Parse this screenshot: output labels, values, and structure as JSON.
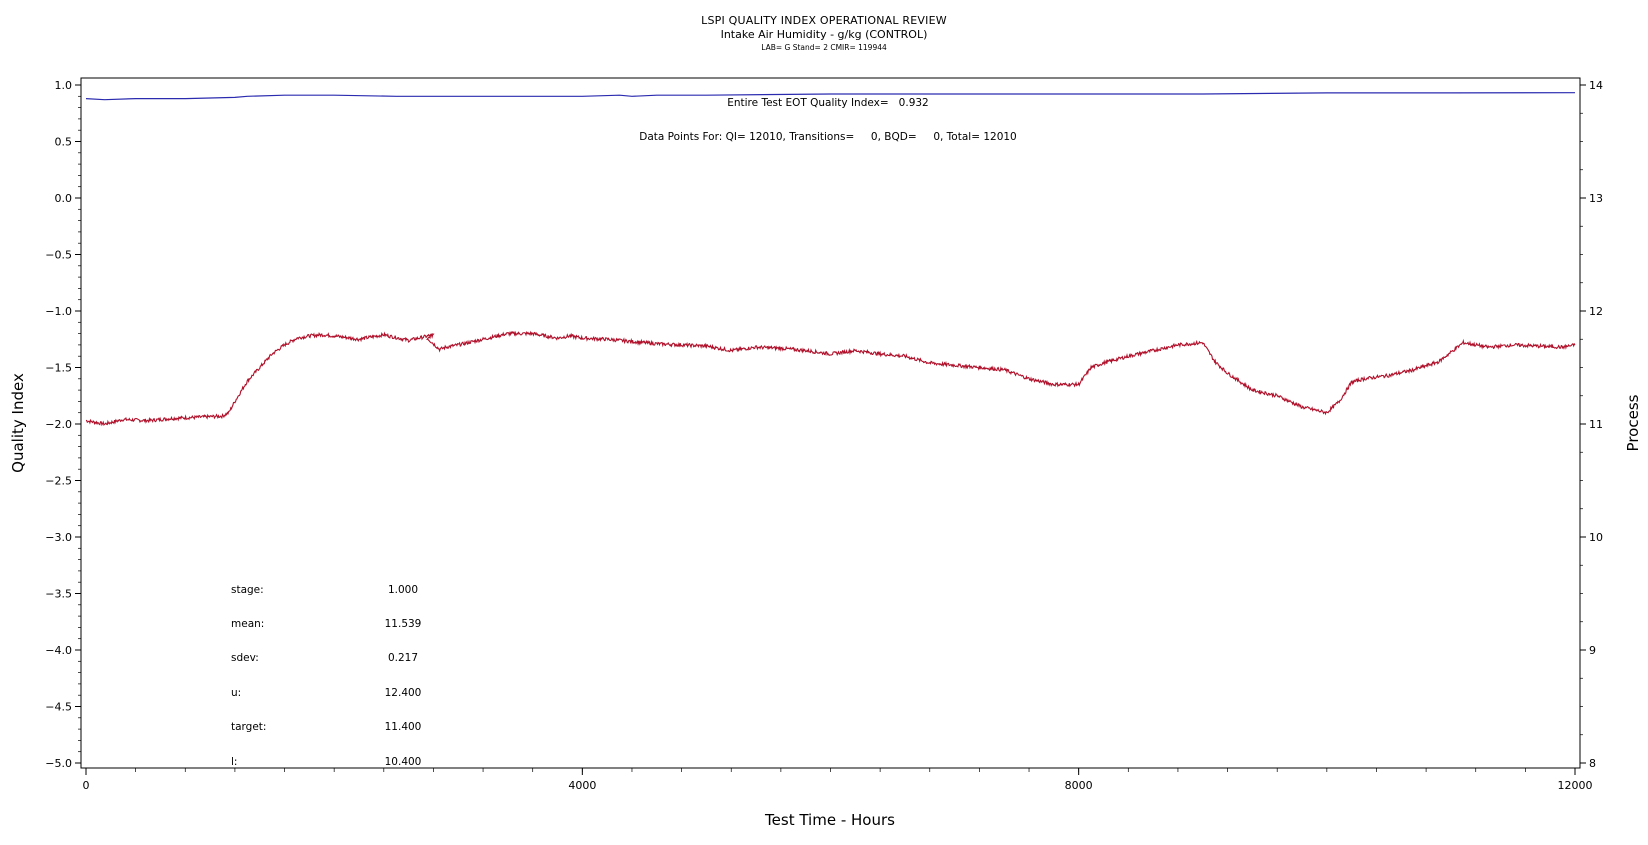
{
  "header": {
    "title": "LSPI QUALITY INDEX OPERATIONAL REVIEW",
    "subtitle": "Intake Air Humidity - g/kg (CONTROL)",
    "meta": "LAB= G Stand= 2 CMIR= 119944"
  },
  "annotations": {
    "qi_line": "Entire Test EOT Quality Index=   0.932",
    "points_line": "Data Points For: QI= 12010, Transitions=     0, BQD=     0, Total= 12010"
  },
  "stats": [
    {
      "label": "stage:",
      "value": "1.000"
    },
    {
      "label": "mean:",
      "value": "11.539"
    },
    {
      "label": "sdev:",
      "value": "0.217"
    },
    {
      "label": "u:",
      "value": "12.400"
    },
    {
      "label": "target:",
      "value": "11.400"
    },
    {
      "label": "l:",
      "value": "10.400"
    }
  ],
  "colors": {
    "quality_index": "#2b2bb0",
    "process": "#b0102a"
  },
  "chart_data": {
    "type": "line",
    "xlabel": "Test Time - Hours",
    "ylabel": "Quality Index",
    "y2label": "Process",
    "xlim": [
      0,
      12000
    ],
    "ylim": [
      -5.0,
      1.0
    ],
    "y2lim": [
      8,
      14
    ],
    "x_ticks": [
      "0",
      "4000",
      "8000",
      "12000"
    ],
    "y_ticks": [
      "1.0",
      "0.5",
      "0.0",
      "-0.5",
      "-1.0",
      "-1.5",
      "-2.0",
      "-2.5",
      "-3.0",
      "-3.5",
      "-4.0",
      "-4.5",
      "-5.0"
    ],
    "y2_ticks": [
      "14",
      "13",
      "12",
      "11",
      "10",
      "9",
      "8"
    ],
    "series": [
      {
        "axis": "left",
        "x": [
          0,
          150,
          400,
          800,
          1200,
          1300,
          1600,
          2000,
          2500,
          3000,
          3500,
          4000,
          4300,
          4400,
          4600,
          5000,
          6000,
          7000,
          7500,
          8000,
          9000,
          10000,
          11000,
          12000
        ],
        "values": [
          0.88,
          0.87,
          0.88,
          0.88,
          0.89,
          0.9,
          0.91,
          0.91,
          0.9,
          0.9,
          0.9,
          0.9,
          0.91,
          0.9,
          0.91,
          0.91,
          0.92,
          0.92,
          0.92,
          0.92,
          0.92,
          0.93,
          0.93,
          0.932
        ]
      },
      {
        "axis": "right",
        "x": [
          0,
          100,
          150,
          300,
          500,
          700,
          900,
          1100,
          1150,
          1200,
          1300,
          1400,
          1500,
          1600,
          1700,
          1800,
          1900,
          2000,
          2200,
          2400,
          2600,
          2800,
          2750,
          2850,
          2900,
          3000,
          3200,
          3400,
          3600,
          3800,
          3900,
          4000,
          4200,
          4400,
          4600,
          4800,
          5000,
          5200,
          5400,
          5600,
          5800,
          6000,
          6200,
          6400,
          6600,
          6800,
          7000,
          7200,
          7400,
          7600,
          7800,
          8000,
          8100,
          8200,
          8400,
          8600,
          8800,
          9000,
          9100,
          9200,
          9400,
          9600,
          9800,
          10000,
          10100,
          10200,
          10300,
          10500,
          10700,
          10900,
          11100,
          11300,
          11500,
          11700,
          11900,
          12000
        ],
        "values": [
          11.03,
          11.01,
          11.0,
          11.04,
          11.03,
          11.05,
          11.06,
          11.07,
          11.1,
          11.2,
          11.38,
          11.5,
          11.62,
          11.7,
          11.76,
          11.78,
          11.79,
          11.78,
          11.75,
          11.79,
          11.74,
          11.79,
          11.76,
          11.66,
          11.68,
          11.7,
          11.75,
          11.8,
          11.8,
          11.76,
          11.78,
          11.76,
          11.75,
          11.73,
          11.71,
          11.7,
          11.69,
          11.65,
          11.68,
          11.67,
          11.65,
          11.62,
          11.65,
          11.62,
          11.6,
          11.54,
          11.52,
          11.5,
          11.48,
          11.4,
          11.35,
          11.35,
          11.5,
          11.54,
          11.6,
          11.65,
          11.7,
          11.72,
          11.55,
          11.45,
          11.3,
          11.25,
          11.15,
          11.1,
          11.2,
          11.37,
          11.4,
          11.43,
          11.48,
          11.55,
          11.72,
          11.68,
          11.7,
          11.69,
          11.68,
          11.7
        ]
      }
    ]
  }
}
